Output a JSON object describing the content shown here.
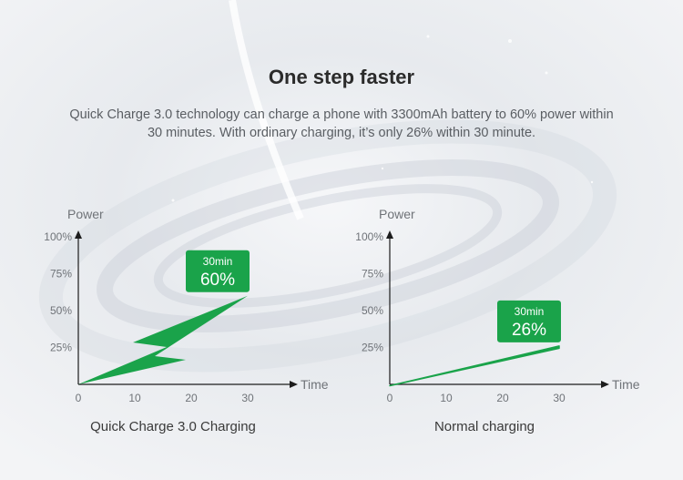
{
  "headline": "One step faster",
  "description_line1": "Quick Charge 3.0 technology can charge a phone with 3300mAh battery to 60% power within",
  "description_line2": "30 minutes. With ordinary charging, it’s only 26% within 30 minute.",
  "colors": {
    "accent": "#1aa34a",
    "axis": "#1c1c1c",
    "text": "#5a5e63"
  },
  "chart_data": [
    {
      "id": "quick",
      "type": "line",
      "caption": "Quick Charge 3.0 Charging",
      "ylabel": "Power",
      "xlabel": "Time",
      "x_ticks": [
        0,
        10,
        20,
        30
      ],
      "y_ticks": [
        "25%",
        "50%",
        "75%",
        "100%"
      ],
      "xlim": [
        0,
        30
      ],
      "ylim": [
        0,
        100
      ],
      "series": [
        {
          "x": [
            0,
            30
          ],
          "y": [
            0,
            60
          ]
        }
      ],
      "annotation": {
        "line1": "30min",
        "line2": "60%"
      },
      "marker": "lightning-bolt"
    },
    {
      "id": "normal",
      "type": "line",
      "caption": "Normal charging",
      "ylabel": "Power",
      "xlabel": "Time",
      "x_ticks": [
        0,
        10,
        20,
        30
      ],
      "y_ticks": [
        "25%",
        "50%",
        "75%",
        "100%"
      ],
      "xlim": [
        0,
        30
      ],
      "ylim": [
        0,
        100
      ],
      "series": [
        {
          "x": [
            0,
            30
          ],
          "y": [
            0,
            26
          ]
        }
      ],
      "annotation": {
        "line1": "30min",
        "line2": "26%"
      },
      "marker": "straight"
    }
  ]
}
